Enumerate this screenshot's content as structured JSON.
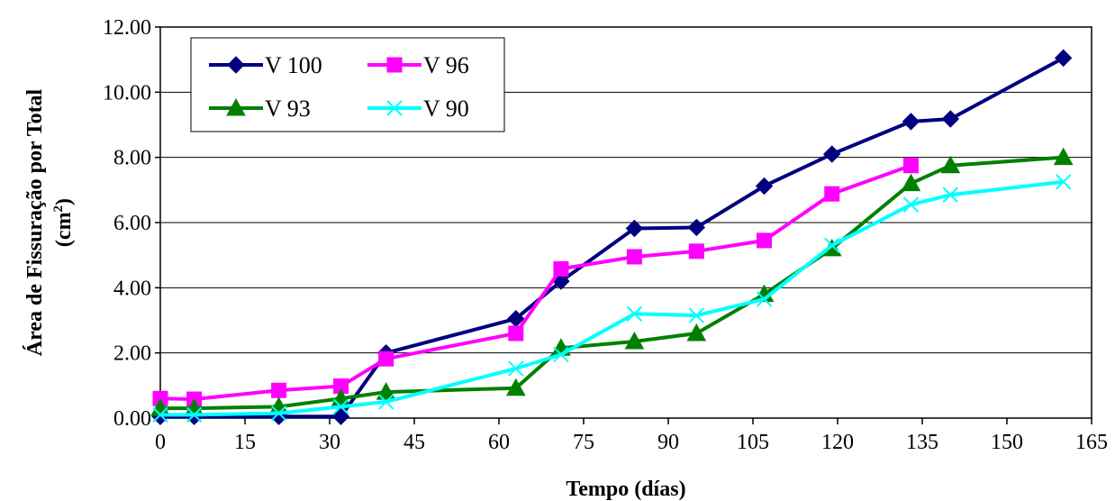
{
  "chart_data": {
    "type": "line",
    "xlabel": "Tempo (días)",
    "ylabel_line1": "Área de Fissuração por Total",
    "ylabel_line2_base": "(cm",
    "ylabel_line2_sup": "2",
    "ylabel_line2_end": ")",
    "xlim": [
      0,
      165
    ],
    "ylim": [
      0,
      12
    ],
    "xticks": [
      "0",
      "15",
      "30",
      "45",
      "60",
      "75",
      "90",
      "105",
      "120",
      "135",
      "150",
      "165"
    ],
    "yticks": [
      "0.00",
      "2.00",
      "4.00",
      "6.00",
      "8.00",
      "10.00",
      "12.00"
    ],
    "xtick_values": [
      0,
      15,
      30,
      45,
      60,
      75,
      90,
      105,
      120,
      135,
      150,
      165
    ],
    "ytick_values": [
      0,
      2,
      4,
      6,
      8,
      10,
      12
    ],
    "grid": "horizontal",
    "legend_position": "top-left",
    "series": [
      {
        "name": "V 100",
        "color": "#000080",
        "marker": "diamond",
        "points": [
          [
            0,
            0.05
          ],
          [
            6,
            0.05
          ],
          [
            21,
            0.05
          ],
          [
            32,
            0.05
          ],
          [
            40,
            2.0
          ],
          [
            63,
            3.05
          ],
          [
            71,
            4.2
          ],
          [
            84,
            5.82
          ],
          [
            95,
            5.85
          ],
          [
            107,
            7.12
          ],
          [
            119,
            8.1
          ],
          [
            133,
            9.1
          ],
          [
            140,
            9.18
          ],
          [
            160,
            11.05
          ]
        ]
      },
      {
        "name": "V 96",
        "color": "#ff00ff",
        "marker": "square",
        "points": [
          [
            0,
            0.6
          ],
          [
            6,
            0.58
          ],
          [
            21,
            0.85
          ],
          [
            32,
            0.98
          ],
          [
            40,
            1.82
          ],
          [
            63,
            2.6
          ],
          [
            71,
            4.58
          ],
          [
            84,
            4.95
          ],
          [
            95,
            5.12
          ],
          [
            107,
            5.45
          ],
          [
            119,
            6.88
          ],
          [
            133,
            7.75
          ]
        ]
      },
      {
        "name": "V 93",
        "color": "#008000",
        "marker": "triangle",
        "points": [
          [
            0,
            0.3
          ],
          [
            6,
            0.3
          ],
          [
            21,
            0.35
          ],
          [
            32,
            0.6
          ],
          [
            40,
            0.8
          ],
          [
            63,
            0.92
          ],
          [
            71,
            2.15
          ],
          [
            84,
            2.35
          ],
          [
            95,
            2.6
          ],
          [
            107,
            3.8
          ],
          [
            119,
            5.2
          ],
          [
            133,
            7.2
          ],
          [
            140,
            7.75
          ],
          [
            160,
            8.0
          ]
        ]
      },
      {
        "name": "V 90",
        "color": "#00ffff",
        "marker": "x",
        "points": [
          [
            0,
            0.1
          ],
          [
            6,
            0.1
          ],
          [
            21,
            0.15
          ],
          [
            32,
            0.35
          ],
          [
            40,
            0.5
          ],
          [
            63,
            1.52
          ],
          [
            71,
            1.95
          ],
          [
            84,
            3.2
          ],
          [
            95,
            3.15
          ],
          [
            107,
            3.65
          ],
          [
            119,
            5.3
          ],
          [
            133,
            6.55
          ],
          [
            140,
            6.85
          ],
          [
            160,
            7.25
          ]
        ]
      }
    ]
  }
}
